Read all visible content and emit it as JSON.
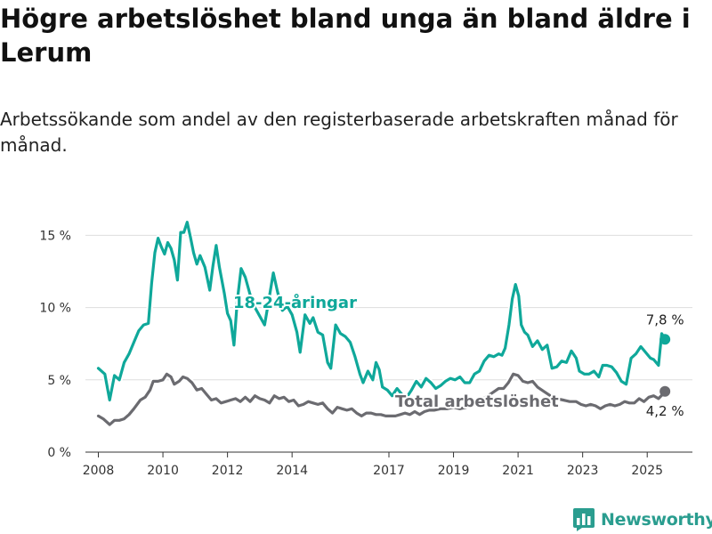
{
  "title": "Högre arbetslöshet bland unga än bland äldre i Lerum",
  "subtitle": "Arbetssökande som andel av den registerbaserade arbetskraften månad för månad.",
  "brand": {
    "name": "Newsworthy",
    "icon": "bar-chart-logo-icon",
    "color": "#2a9d8f"
  },
  "chart_data": {
    "type": "line",
    "x_unit": "year",
    "xlim": [
      2007.6,
      2026.4
    ],
    "ylim": [
      0,
      16.5
    ],
    "x_ticks": [
      2008,
      2010,
      2012,
      2014,
      2017,
      2019,
      2021,
      2023,
      2025
    ],
    "x_tick_labels": [
      "2008",
      "2010",
      "2012",
      "2014",
      "2017",
      "2019",
      "2021",
      "2023",
      "2025"
    ],
    "y_ticks": [
      0,
      5,
      10,
      15
    ],
    "y_tick_labels": [
      "0 %",
      "5 %",
      "10 %",
      "15 %"
    ],
    "grid": "horizontal",
    "legend": "inline labels",
    "series": [
      {
        "name": "18-24-åringar",
        "color": "#0fa89a",
        "end_value": 7.8,
        "end_label": "7,8 %",
        "points": [
          [
            2008.0,
            5.8
          ],
          [
            2008.2,
            5.4
          ],
          [
            2008.35,
            3.6
          ],
          [
            2008.5,
            5.3
          ],
          [
            2008.65,
            5.0
          ],
          [
            2008.8,
            6.2
          ],
          [
            2008.95,
            6.8
          ],
          [
            2009.1,
            7.6
          ],
          [
            2009.25,
            8.4
          ],
          [
            2009.4,
            8.8
          ],
          [
            2009.55,
            8.9
          ],
          [
            2009.65,
            11.7
          ],
          [
            2009.75,
            13.8
          ],
          [
            2009.85,
            14.8
          ],
          [
            2009.95,
            14.2
          ],
          [
            2010.05,
            13.7
          ],
          [
            2010.15,
            14.5
          ],
          [
            2010.25,
            14.1
          ],
          [
            2010.35,
            13.3
          ],
          [
            2010.45,
            11.9
          ],
          [
            2010.55,
            15.2
          ],
          [
            2010.65,
            15.2
          ],
          [
            2010.75,
            15.9
          ],
          [
            2010.85,
            14.9
          ],
          [
            2010.95,
            13.8
          ],
          [
            2011.05,
            13.0
          ],
          [
            2011.15,
            13.6
          ],
          [
            2011.3,
            12.8
          ],
          [
            2011.45,
            11.2
          ],
          [
            2011.55,
            12.9
          ],
          [
            2011.65,
            14.3
          ],
          [
            2011.75,
            12.8
          ],
          [
            2011.9,
            11.0
          ],
          [
            2012.0,
            9.6
          ],
          [
            2012.1,
            9.1
          ],
          [
            2012.2,
            7.4
          ],
          [
            2012.3,
            10.4
          ],
          [
            2012.42,
            12.7
          ],
          [
            2012.55,
            12.1
          ],
          [
            2012.7,
            10.9
          ],
          [
            2012.85,
            10.0
          ],
          [
            2013.0,
            9.4
          ],
          [
            2013.15,
            8.8
          ],
          [
            2013.3,
            10.8
          ],
          [
            2013.42,
            12.4
          ],
          [
            2013.55,
            11.1
          ],
          [
            2013.7,
            9.8
          ],
          [
            2013.85,
            10.1
          ],
          [
            2014.0,
            9.5
          ],
          [
            2014.15,
            8.3
          ],
          [
            2014.25,
            6.9
          ],
          [
            2014.4,
            9.5
          ],
          [
            2014.55,
            8.9
          ],
          [
            2014.65,
            9.3
          ],
          [
            2014.8,
            8.3
          ],
          [
            2014.95,
            8.1
          ],
          [
            2015.1,
            6.2
          ],
          [
            2015.2,
            5.8
          ],
          [
            2015.35,
            8.8
          ],
          [
            2015.5,
            8.2
          ],
          [
            2015.65,
            8.0
          ],
          [
            2015.8,
            7.6
          ],
          [
            2015.95,
            6.6
          ],
          [
            2016.1,
            5.4
          ],
          [
            2016.2,
            4.8
          ],
          [
            2016.35,
            5.6
          ],
          [
            2016.5,
            5.0
          ],
          [
            2016.6,
            6.2
          ],
          [
            2016.7,
            5.7
          ],
          [
            2016.8,
            4.5
          ],
          [
            2016.95,
            4.3
          ],
          [
            2017.1,
            3.9
          ],
          [
            2017.25,
            4.4
          ],
          [
            2017.4,
            4.0
          ],
          [
            2017.55,
            3.8
          ],
          [
            2017.7,
            4.3
          ],
          [
            2017.85,
            4.9
          ],
          [
            2018.0,
            4.5
          ],
          [
            2018.15,
            5.1
          ],
          [
            2018.3,
            4.8
          ],
          [
            2018.45,
            4.4
          ],
          [
            2018.6,
            4.6
          ],
          [
            2018.75,
            4.9
          ],
          [
            2018.9,
            5.1
          ],
          [
            2019.05,
            5.0
          ],
          [
            2019.2,
            5.2
          ],
          [
            2019.35,
            4.8
          ],
          [
            2019.5,
            4.8
          ],
          [
            2019.65,
            5.4
          ],
          [
            2019.8,
            5.6
          ],
          [
            2019.95,
            6.3
          ],
          [
            2020.1,
            6.7
          ],
          [
            2020.25,
            6.6
          ],
          [
            2020.4,
            6.8
          ],
          [
            2020.5,
            6.7
          ],
          [
            2020.6,
            7.2
          ],
          [
            2020.72,
            8.8
          ],
          [
            2020.82,
            10.6
          ],
          [
            2020.92,
            11.6
          ],
          [
            2021.02,
            10.8
          ],
          [
            2021.1,
            8.8
          ],
          [
            2021.2,
            8.3
          ],
          [
            2021.3,
            8.1
          ],
          [
            2021.45,
            7.3
          ],
          [
            2021.6,
            7.7
          ],
          [
            2021.75,
            7.1
          ],
          [
            2021.9,
            7.4
          ],
          [
            2022.05,
            5.8
          ],
          [
            2022.2,
            5.9
          ],
          [
            2022.35,
            6.3
          ],
          [
            2022.5,
            6.2
          ],
          [
            2022.65,
            7.0
          ],
          [
            2022.8,
            6.5
          ],
          [
            2022.9,
            5.6
          ],
          [
            2023.05,
            5.4
          ],
          [
            2023.2,
            5.4
          ],
          [
            2023.35,
            5.6
          ],
          [
            2023.5,
            5.2
          ],
          [
            2023.62,
            6.0
          ],
          [
            2023.75,
            6.0
          ],
          [
            2023.9,
            5.9
          ],
          [
            2024.05,
            5.5
          ],
          [
            2024.2,
            4.9
          ],
          [
            2024.35,
            4.7
          ],
          [
            2024.5,
            6.5
          ],
          [
            2024.65,
            6.8
          ],
          [
            2024.8,
            7.3
          ],
          [
            2024.95,
            6.9
          ],
          [
            2025.1,
            6.5
          ],
          [
            2025.2,
            6.4
          ],
          [
            2025.35,
            6.0
          ],
          [
            2025.45,
            8.2
          ],
          [
            2025.55,
            7.8
          ]
        ]
      },
      {
        "name": "Total arbetslöshet",
        "color": "#6b6b70",
        "end_value": 4.2,
        "end_label": "4,2 %",
        "points": [
          [
            2008.0,
            2.5
          ],
          [
            2008.15,
            2.3
          ],
          [
            2008.35,
            1.9
          ],
          [
            2008.5,
            2.2
          ],
          [
            2008.65,
            2.2
          ],
          [
            2008.8,
            2.3
          ],
          [
            2008.95,
            2.6
          ],
          [
            2009.1,
            3.0
          ],
          [
            2009.3,
            3.6
          ],
          [
            2009.45,
            3.8
          ],
          [
            2009.6,
            4.3
          ],
          [
            2009.7,
            4.9
          ],
          [
            2009.85,
            4.9
          ],
          [
            2010.0,
            5.0
          ],
          [
            2010.12,
            5.4
          ],
          [
            2010.25,
            5.2
          ],
          [
            2010.35,
            4.7
          ],
          [
            2010.5,
            4.9
          ],
          [
            2010.62,
            5.2
          ],
          [
            2010.75,
            5.1
          ],
          [
            2010.9,
            4.8
          ],
          [
            2011.05,
            4.3
          ],
          [
            2011.2,
            4.4
          ],
          [
            2011.35,
            4.0
          ],
          [
            2011.5,
            3.6
          ],
          [
            2011.65,
            3.7
          ],
          [
            2011.8,
            3.4
          ],
          [
            2011.95,
            3.5
          ],
          [
            2012.1,
            3.6
          ],
          [
            2012.25,
            3.7
          ],
          [
            2012.4,
            3.5
          ],
          [
            2012.55,
            3.8
          ],
          [
            2012.7,
            3.5
          ],
          [
            2012.85,
            3.9
          ],
          [
            2013.0,
            3.7
          ],
          [
            2013.15,
            3.6
          ],
          [
            2013.3,
            3.4
          ],
          [
            2013.45,
            3.9
          ],
          [
            2013.6,
            3.7
          ],
          [
            2013.75,
            3.8
          ],
          [
            2013.9,
            3.5
          ],
          [
            2014.05,
            3.6
          ],
          [
            2014.2,
            3.2
          ],
          [
            2014.35,
            3.3
          ],
          [
            2014.5,
            3.5
          ],
          [
            2014.65,
            3.4
          ],
          [
            2014.8,
            3.3
          ],
          [
            2014.95,
            3.4
          ],
          [
            2015.1,
            3.0
          ],
          [
            2015.25,
            2.7
          ],
          [
            2015.4,
            3.1
          ],
          [
            2015.55,
            3.0
          ],
          [
            2015.7,
            2.9
          ],
          [
            2015.85,
            3.0
          ],
          [
            2016.0,
            2.7
          ],
          [
            2016.15,
            2.5
          ],
          [
            2016.3,
            2.7
          ],
          [
            2016.45,
            2.7
          ],
          [
            2016.6,
            2.6
          ],
          [
            2016.75,
            2.6
          ],
          [
            2016.9,
            2.5
          ],
          [
            2017.05,
            2.5
          ],
          [
            2017.2,
            2.5
          ],
          [
            2017.35,
            2.6
          ],
          [
            2017.5,
            2.7
          ],
          [
            2017.65,
            2.6
          ],
          [
            2017.8,
            2.8
          ],
          [
            2017.95,
            2.6
          ],
          [
            2018.1,
            2.8
          ],
          [
            2018.25,
            2.9
          ],
          [
            2018.4,
            2.9
          ],
          [
            2018.6,
            3.0
          ],
          [
            2018.8,
            3.0
          ],
          [
            2019.0,
            3.1
          ],
          [
            2019.2,
            3.0
          ],
          [
            2019.4,
            3.1
          ],
          [
            2019.6,
            3.3
          ],
          [
            2019.8,
            3.5
          ],
          [
            2020.0,
            3.8
          ],
          [
            2020.2,
            4.1
          ],
          [
            2020.4,
            4.4
          ],
          [
            2020.55,
            4.4
          ],
          [
            2020.7,
            4.8
          ],
          [
            2020.85,
            5.4
          ],
          [
            2021.0,
            5.3
          ],
          [
            2021.15,
            4.9
          ],
          [
            2021.3,
            4.8
          ],
          [
            2021.45,
            4.9
          ],
          [
            2021.6,
            4.5
          ],
          [
            2021.8,
            4.2
          ],
          [
            2022.0,
            3.9
          ],
          [
            2022.2,
            3.7
          ],
          [
            2022.4,
            3.6
          ],
          [
            2022.6,
            3.5
          ],
          [
            2022.8,
            3.5
          ],
          [
            2022.95,
            3.3
          ],
          [
            2023.1,
            3.2
          ],
          [
            2023.25,
            3.3
          ],
          [
            2023.4,
            3.2
          ],
          [
            2023.55,
            3.0
          ],
          [
            2023.7,
            3.2
          ],
          [
            2023.85,
            3.3
          ],
          [
            2024.0,
            3.2
          ],
          [
            2024.15,
            3.3
          ],
          [
            2024.3,
            3.5
          ],
          [
            2024.45,
            3.4
          ],
          [
            2024.6,
            3.4
          ],
          [
            2024.75,
            3.7
          ],
          [
            2024.9,
            3.5
          ],
          [
            2025.05,
            3.8
          ],
          [
            2025.2,
            3.9
          ],
          [
            2025.35,
            3.7
          ],
          [
            2025.48,
            4.0
          ],
          [
            2025.55,
            4.2
          ]
        ]
      }
    ]
  }
}
